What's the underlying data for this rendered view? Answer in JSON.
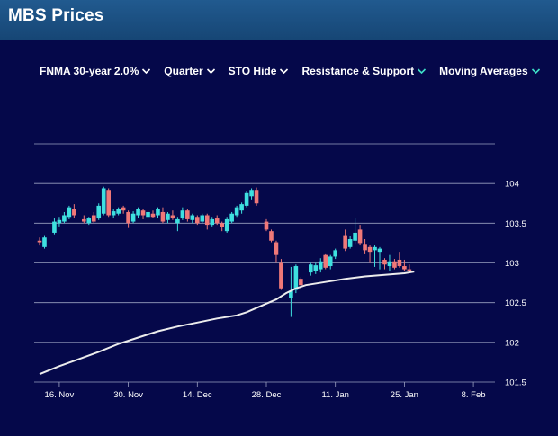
{
  "header": {
    "title": "MBS Prices"
  },
  "toolbar": {
    "items": [
      {
        "label": "FNMA 30-year 2.0%",
        "icon": "chevron-down-icon",
        "icon_color": "#ffffff"
      },
      {
        "label": "Quarter",
        "icon": "chevron-down-icon",
        "icon_color": "#ffffff"
      },
      {
        "label": "STO Hide",
        "icon": "chevron-down-icon",
        "icon_color": "#ffffff"
      },
      {
        "label": "Resistance & Support",
        "icon": "chevron-down-icon",
        "icon_color": "#3ee0c8"
      },
      {
        "label": "Moving Averages",
        "icon": "chevron-down-icon",
        "icon_color": "#3ee0c8"
      }
    ]
  },
  "chart_data": {
    "type": "candlestick",
    "colors": {
      "up": "#3ee0e0",
      "down": "#f07878",
      "moving_average": "#ececec",
      "grid": "#9aa0c0",
      "background": "#05084a"
    },
    "ylim": [
      101.5,
      104.5
    ],
    "y_ticks": [
      104,
      103.5,
      103,
      102.5,
      102,
      101.5
    ],
    "y_tick_labels": [
      "104",
      "103.5",
      "103",
      "102.5",
      "102",
      "101.5"
    ],
    "x_range": [
      0,
      92
    ],
    "x_ticks": [
      {
        "x": 4,
        "label": "16. Nov"
      },
      {
        "x": 18,
        "label": "30. Nov"
      },
      {
        "x": 32,
        "label": "14. Dec"
      },
      {
        "x": 46,
        "label": "28. Dec"
      },
      {
        "x": 60,
        "label": "11. Jan"
      },
      {
        "x": 74,
        "label": "25. Jan"
      },
      {
        "x": 88,
        "label": "8. Feb"
      }
    ],
    "candles": [
      {
        "x": 0,
        "open": 103.28,
        "close": 103.26,
        "high": 103.32,
        "low": 103.22
      },
      {
        "x": 1,
        "open": 103.2,
        "close": 103.32,
        "high": 103.35,
        "low": 103.18
      },
      {
        "x": 3,
        "open": 103.38,
        "close": 103.52,
        "high": 103.56,
        "low": 103.36
      },
      {
        "x": 4,
        "open": 103.5,
        "close": 103.54,
        "high": 103.58,
        "low": 103.46
      },
      {
        "x": 5,
        "open": 103.52,
        "close": 103.6,
        "high": 103.64,
        "low": 103.5
      },
      {
        "x": 6,
        "open": 103.58,
        "close": 103.7,
        "high": 103.72,
        "low": 103.55
      },
      {
        "x": 7,
        "open": 103.68,
        "close": 103.6,
        "high": 103.74,
        "low": 103.56
      },
      {
        "x": 9,
        "open": 103.55,
        "close": 103.52,
        "high": 103.6,
        "low": 103.5
      },
      {
        "x": 10,
        "open": 103.5,
        "close": 103.56,
        "high": 103.58,
        "low": 103.48
      },
      {
        "x": 11,
        "open": 103.6,
        "close": 103.52,
        "high": 103.64,
        "low": 103.5
      },
      {
        "x": 12,
        "open": 103.56,
        "close": 103.72,
        "high": 103.75,
        "low": 103.54
      },
      {
        "x": 13,
        "open": 103.62,
        "close": 103.94,
        "high": 103.96,
        "low": 103.6
      },
      {
        "x": 14,
        "open": 103.92,
        "close": 103.6,
        "high": 103.94,
        "low": 103.58
      },
      {
        "x": 15,
        "open": 103.6,
        "close": 103.65,
        "high": 103.68,
        "low": 103.56
      },
      {
        "x": 16,
        "open": 103.62,
        "close": 103.68,
        "high": 103.7,
        "low": 103.6
      },
      {
        "x": 17,
        "open": 103.7,
        "close": 103.66,
        "high": 103.72,
        "low": 103.62
      },
      {
        "x": 18,
        "open": 103.64,
        "close": 103.5,
        "high": 103.66,
        "low": 103.44
      },
      {
        "x": 19,
        "open": 103.52,
        "close": 103.62,
        "high": 103.65,
        "low": 103.5
      },
      {
        "x": 20,
        "open": 103.6,
        "close": 103.68,
        "high": 103.7,
        "low": 103.56
      },
      {
        "x": 21,
        "open": 103.66,
        "close": 103.6,
        "high": 103.68,
        "low": 103.55
      },
      {
        "x": 22,
        "open": 103.58,
        "close": 103.64,
        "high": 103.66,
        "low": 103.55
      },
      {
        "x": 23,
        "open": 103.62,
        "close": 103.58,
        "high": 103.66,
        "low": 103.56
      },
      {
        "x": 24,
        "open": 103.6,
        "close": 103.68,
        "high": 103.7,
        "low": 103.56
      },
      {
        "x": 25,
        "open": 103.64,
        "close": 103.52,
        "high": 103.7,
        "low": 103.5
      },
      {
        "x": 26,
        "open": 103.54,
        "close": 103.62,
        "high": 103.64,
        "low": 103.5
      },
      {
        "x": 27,
        "open": 103.6,
        "close": 103.56,
        "high": 103.66,
        "low": 103.54
      },
      {
        "x": 28,
        "open": 103.5,
        "close": 103.55,
        "high": 103.58,
        "low": 103.4
      },
      {
        "x": 29,
        "open": 103.56,
        "close": 103.66,
        "high": 103.7,
        "low": 103.54
      },
      {
        "x": 30,
        "open": 103.66,
        "close": 103.55,
        "high": 103.68,
        "low": 103.52
      },
      {
        "x": 31,
        "open": 103.54,
        "close": 103.6,
        "high": 103.62,
        "low": 103.5
      },
      {
        "x": 32,
        "open": 103.58,
        "close": 103.5,
        "high": 103.6,
        "low": 103.48
      },
      {
        "x": 33,
        "open": 103.52,
        "close": 103.6,
        "high": 103.62,
        "low": 103.5
      },
      {
        "x": 34,
        "open": 103.6,
        "close": 103.48,
        "high": 103.62,
        "low": 103.42
      },
      {
        "x": 35,
        "open": 103.48,
        "close": 103.55,
        "high": 103.58,
        "low": 103.46
      },
      {
        "x": 36,
        "open": 103.56,
        "close": 103.5,
        "high": 103.6,
        "low": 103.48
      },
      {
        "x": 37,
        "open": 103.5,
        "close": 103.45,
        "high": 103.52,
        "low": 103.4
      },
      {
        "x": 38,
        "open": 103.4,
        "close": 103.55,
        "high": 103.58,
        "low": 103.38
      },
      {
        "x": 39,
        "open": 103.52,
        "close": 103.62,
        "high": 103.64,
        "low": 103.5
      },
      {
        "x": 40,
        "open": 103.6,
        "close": 103.7,
        "high": 103.72,
        "low": 103.58
      },
      {
        "x": 41,
        "open": 103.66,
        "close": 103.74,
        "high": 103.76,
        "low": 103.62
      },
      {
        "x": 42,
        "open": 103.72,
        "close": 103.88,
        "high": 103.9,
        "low": 103.7
      },
      {
        "x": 43,
        "open": 103.84,
        "close": 103.92,
        "high": 103.94,
        "low": 103.8
      },
      {
        "x": 44,
        "open": 103.92,
        "close": 103.75,
        "high": 103.95,
        "low": 103.72
      },
      {
        "x": 46,
        "open": 103.52,
        "close": 103.42,
        "high": 103.55,
        "low": 103.4
      },
      {
        "x": 47,
        "open": 103.4,
        "close": 103.28,
        "high": 103.42,
        "low": 103.26
      },
      {
        "x": 48,
        "open": 103.26,
        "close": 103.1,
        "high": 103.28,
        "low": 103.0
      },
      {
        "x": 49,
        "open": 103.0,
        "close": 102.68,
        "high": 103.05,
        "low": 102.66
      },
      {
        "x": 51,
        "open": 102.56,
        "close": 102.65,
        "high": 102.95,
        "low": 102.32
      },
      {
        "x": 52,
        "open": 102.66,
        "close": 102.96,
        "high": 102.98,
        "low": 102.62
      },
      {
        "x": 53,
        "open": 102.8,
        "close": 102.72,
        "high": 102.82,
        "low": 102.68
      },
      {
        "x": 55,
        "open": 102.88,
        "close": 102.98,
        "high": 103.0,
        "low": 102.84
      },
      {
        "x": 56,
        "open": 102.9,
        "close": 102.97,
        "high": 103.0,
        "low": 102.86
      },
      {
        "x": 57,
        "open": 102.92,
        "close": 103.02,
        "high": 103.06,
        "low": 102.88
      },
      {
        "x": 58,
        "open": 103.1,
        "close": 102.94,
        "high": 103.12,
        "low": 102.92
      },
      {
        "x": 59,
        "open": 102.96,
        "close": 103.08,
        "high": 103.1,
        "low": 102.92
      },
      {
        "x": 60,
        "open": 103.08,
        "close": 103.16,
        "high": 103.18,
        "low": 103.05
      },
      {
        "x": 62,
        "open": 103.35,
        "close": 103.18,
        "high": 103.42,
        "low": 103.15
      },
      {
        "x": 63,
        "open": 103.2,
        "close": 103.3,
        "high": 103.34,
        "low": 103.18
      },
      {
        "x": 64,
        "open": 103.28,
        "close": 103.38,
        "high": 103.56,
        "low": 103.24
      },
      {
        "x": 65,
        "open": 103.42,
        "close": 103.25,
        "high": 103.48,
        "low": 103.22
      },
      {
        "x": 66,
        "open": 103.24,
        "close": 103.16,
        "high": 103.3,
        "low": 103.12
      },
      {
        "x": 67,
        "open": 103.2,
        "close": 103.14,
        "high": 103.22,
        "low": 103.0
      },
      {
        "x": 68,
        "open": 103.16,
        "close": 103.2,
        "high": 103.22,
        "low": 102.95
      },
      {
        "x": 69,
        "open": 103.14,
        "close": 103.18,
        "high": 103.2,
        "low": 102.92
      },
      {
        "x": 70,
        "open": 103.04,
        "close": 102.98,
        "high": 103.06,
        "low": 102.92
      },
      {
        "x": 71,
        "open": 102.96,
        "close": 103.02,
        "high": 103.1,
        "low": 102.9
      },
      {
        "x": 72,
        "open": 103.02,
        "close": 102.94,
        "high": 103.05,
        "low": 102.92
      },
      {
        "x": 73,
        "open": 103.04,
        "close": 102.96,
        "high": 103.14,
        "low": 102.94
      },
      {
        "x": 74,
        "open": 102.96,
        "close": 102.92,
        "high": 103.04,
        "low": 102.9
      },
      {
        "x": 75,
        "open": 102.92,
        "close": 102.9,
        "high": 102.98,
        "low": 102.88
      }
    ],
    "moving_average": [
      [
        0,
        101.6
      ],
      [
        4,
        101.7
      ],
      [
        8,
        101.79
      ],
      [
        12,
        101.88
      ],
      [
        16,
        101.98
      ],
      [
        20,
        102.06
      ],
      [
        24,
        102.14
      ],
      [
        28,
        102.2
      ],
      [
        32,
        102.25
      ],
      [
        36,
        102.3
      ],
      [
        40,
        102.34
      ],
      [
        42,
        102.38
      ],
      [
        45,
        102.46
      ],
      [
        48,
        102.54
      ],
      [
        50,
        102.62
      ],
      [
        52,
        102.68
      ],
      [
        54,
        102.72
      ],
      [
        58,
        102.76
      ],
      [
        62,
        102.8
      ],
      [
        66,
        102.83
      ],
      [
        70,
        102.85
      ],
      [
        74,
        102.87
      ],
      [
        76,
        102.89
      ]
    ]
  }
}
